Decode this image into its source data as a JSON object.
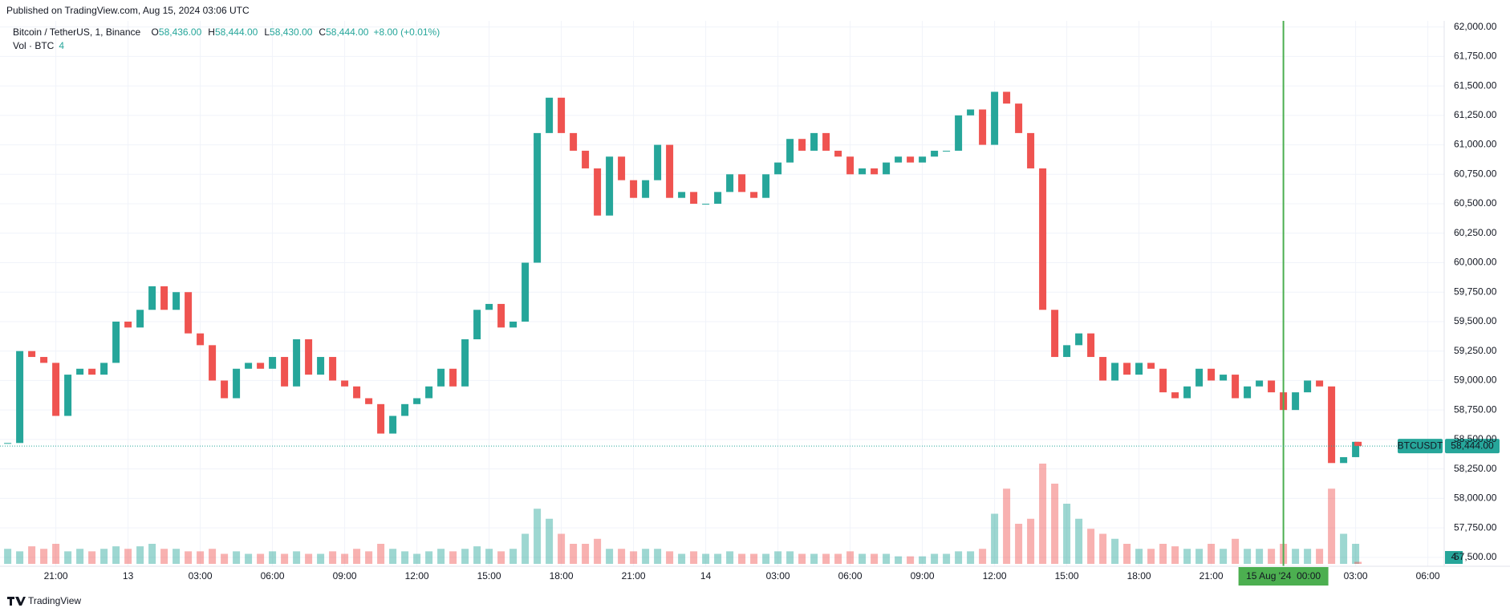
{
  "header": {
    "published": "Published on TradingView.com, Aug 15, 2024 03:06 UTC"
  },
  "legend": {
    "symbol": "Bitcoin / TetherUS, 1, Binance",
    "ohlc": [
      {
        "key": "O",
        "value": "58,436.00"
      },
      {
        "key": "H",
        "value": "58,444.00"
      },
      {
        "key": "L",
        "value": "58,430.00"
      },
      {
        "key": "C",
        "value": "58,444.00"
      }
    ],
    "change": "+8.00 (+0.01%)",
    "volume_name": "Vol · BTC",
    "volume_value": "4"
  },
  "footer": {
    "brand": "TradingView"
  },
  "chart_data": {
    "type": "candlestick",
    "symbol_tag": "BTCUSDT",
    "last_price": {
      "value": 58444,
      "label": "58,444.00"
    },
    "volume_tag": "4",
    "up_color": "#26a69a",
    "down_color": "#ef5350",
    "cursor_color": "#4caf50",
    "grid": true,
    "cursor_x": 72,
    "x": [
      19,
      19.5,
      20,
      20.5,
      21,
      21.5,
      22,
      22.5,
      23,
      23.5,
      24,
      24.5,
      25,
      25.5,
      26,
      26.5,
      27,
      27.5,
      28,
      28.5,
      29,
      29.5,
      30,
      30.5,
      31,
      31.5,
      32,
      32.5,
      33,
      33.5,
      34,
      34.5,
      35,
      35.5,
      36,
      36.5,
      37,
      37.5,
      38,
      38.5,
      39,
      39.5,
      40,
      40.5,
      41,
      41.5,
      42,
      42.5,
      43,
      43.5,
      44,
      44.5,
      45,
      45.5,
      46,
      46.5,
      47,
      47.5,
      48,
      48.5,
      49,
      49.5,
      50,
      50.5,
      51,
      51.5,
      52,
      52.5,
      53,
      53.5,
      54,
      54.5,
      55,
      55.5,
      56,
      56.5,
      57,
      57.5,
      58,
      58.5,
      59,
      59.5,
      60,
      60.5,
      61,
      61.5,
      62,
      62.5,
      63,
      63.5,
      64,
      64.5,
      65,
      65.5,
      66,
      66.5,
      67,
      67.5,
      68,
      68.5,
      69,
      69.5,
      70,
      70.5,
      71,
      71.5,
      72,
      72.5,
      73,
      73.5,
      74,
      74.5,
      75,
      75.1
    ],
    "close": [
      58470,
      59250,
      59200,
      59150,
      58700,
      59050,
      59100,
      59050,
      59150,
      59500,
      59450,
      59600,
      59800,
      59600,
      59750,
      59400,
      59300,
      59000,
      58850,
      59100,
      59150,
      59100,
      59200,
      58950,
      59350,
      59050,
      59200,
      59000,
      58950,
      58850,
      58800,
      58550,
      58700,
      58800,
      58850,
      58950,
      59100,
      58950,
      59350,
      59600,
      59650,
      59450,
      59500,
      60000,
      61100,
      61400,
      61100,
      60950,
      60800,
      60400,
      60900,
      60700,
      60550,
      60700,
      61000,
      60550,
      60600,
      60500,
      60500,
      60600,
      60750,
      60600,
      60550,
      60750,
      60850,
      61050,
      60950,
      61100,
      60950,
      60900,
      60750,
      60800,
      60750,
      60850,
      60900,
      60850,
      60900,
      60950,
      60950,
      61250,
      61300,
      61000,
      61450,
      61350,
      61100,
      60800,
      59600,
      59200,
      59300,
      59400,
      59200,
      59000,
      59150,
      59050,
      59150,
      59100,
      58900,
      58850,
      58950,
      59100,
      59000,
      59050,
      58850,
      58950,
      59000,
      58900,
      58750,
      58900,
      59000,
      58950,
      58300,
      58350,
      58480,
      58444
    ],
    "volume": [
      30,
      25,
      35,
      30,
      40,
      25,
      30,
      25,
      30,
      35,
      30,
      35,
      40,
      30,
      30,
      25,
      25,
      30,
      20,
      25,
      20,
      20,
      25,
      20,
      25,
      20,
      20,
      25,
      20,
      30,
      25,
      40,
      30,
      25,
      20,
      25,
      30,
      25,
      30,
      35,
      30,
      25,
      30,
      60,
      110,
      90,
      60,
      40,
      40,
      50,
      30,
      30,
      25,
      30,
      30,
      25,
      20,
      25,
      20,
      20,
      25,
      20,
      20,
      20,
      25,
      25,
      20,
      20,
      20,
      20,
      25,
      20,
      20,
      20,
      15,
      15,
      15,
      20,
      20,
      25,
      25,
      30,
      100,
      150,
      80,
      90,
      200,
      160,
      120,
      90,
      70,
      60,
      50,
      40,
      30,
      30,
      40,
      35,
      30,
      30,
      40,
      30,
      50,
      30,
      30,
      30,
      40,
      30,
      30,
      30,
      150,
      60,
      40,
      4
    ],
    "vol_ylim": [
      0,
      400
    ],
    "xlim": [
      19,
      78.68
    ],
    "xticks": [
      {
        "value": 21,
        "label": "21:00"
      },
      {
        "value": 24,
        "label": "13"
      },
      {
        "value": 27,
        "label": "03:00"
      },
      {
        "value": 30,
        "label": "06:00"
      },
      {
        "value": 33,
        "label": "09:00"
      },
      {
        "value": 36,
        "label": "12:00"
      },
      {
        "value": 39,
        "label": "15:00"
      },
      {
        "value": 42,
        "label": "18:00"
      },
      {
        "value": 45,
        "label": "21:00"
      },
      {
        "value": 48,
        "label": "14"
      },
      {
        "value": 51,
        "label": "03:00"
      },
      {
        "value": 54,
        "label": "06:00"
      },
      {
        "value": 57,
        "label": "09:00"
      },
      {
        "value": 60,
        "label": "12:00"
      },
      {
        "value": 63,
        "label": "15:00"
      },
      {
        "value": 66,
        "label": "18:00"
      },
      {
        "value": 69,
        "label": "21:00"
      },
      {
        "value": 72,
        "label": "15 Aug '24  00:00"
      },
      {
        "value": 75,
        "label": "03:00"
      },
      {
        "value": 78,
        "label": "06:00"
      }
    ],
    "ylim": [
      57424,
      62052
    ],
    "yticks": [
      {
        "value": 57500,
        "label": "57,500.00"
      },
      {
        "value": 57750,
        "label": "57,750.00"
      },
      {
        "value": 58000,
        "label": "58,000.00"
      },
      {
        "value": 58250,
        "label": "58,250.00"
      },
      {
        "value": 58500,
        "label": "58,500.00"
      },
      {
        "value": 58750,
        "label": "58,750.00"
      },
      {
        "value": 59000,
        "label": "59,000.00"
      },
      {
        "value": 59250,
        "label": "59,250.00"
      },
      {
        "value": 59500,
        "label": "59,500.00"
      },
      {
        "value": 59750,
        "label": "59,750.00"
      },
      {
        "value": 60000,
        "label": "60,000.00"
      },
      {
        "value": 60250,
        "label": "60,250.00"
      },
      {
        "value": 60500,
        "label": "60,500.00"
      },
      {
        "value": 60750,
        "label": "60,750.00"
      },
      {
        "value": 61000,
        "label": "61,000.00"
      },
      {
        "value": 61250,
        "label": "61,250.00"
      },
      {
        "value": 61500,
        "label": "61,500.00"
      },
      {
        "value": 61750,
        "label": "61,750.00"
      },
      {
        "value": 62000,
        "label": "62,000.00"
      }
    ]
  }
}
